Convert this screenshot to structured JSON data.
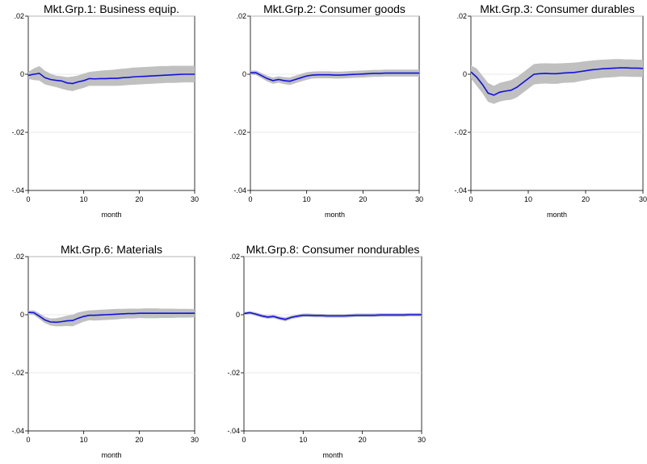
{
  "figure": {
    "colors": {
      "line": "#1010e0",
      "band": "#c0c0c0",
      "grid": "#e3e3e3",
      "frame": "#000000"
    }
  },
  "chart_data": [
    {
      "type": "line",
      "title": "Mkt.Grp.1: Business equip.",
      "xlabel": "month",
      "ylabel": "",
      "xlim": [
        0,
        30
      ],
      "ylim": [
        -0.04,
        0.02
      ],
      "xticks": [
        "0",
        "10",
        "20",
        "30"
      ],
      "yticks": [
        ".02",
        "0",
        "-.02",
        "-.04"
      ],
      "grid": true,
      "x": [
        0,
        1,
        2,
        3,
        4,
        5,
        6,
        7,
        8,
        9,
        10,
        11,
        12,
        13,
        14,
        15,
        16,
        17,
        18,
        19,
        20,
        21,
        22,
        23,
        24,
        25,
        26,
        27,
        28,
        29,
        30
      ],
      "series": [
        {
          "role": "estimate",
          "values": [
            -0.0004,
            0.0,
            0.0003,
            -0.0012,
            -0.0018,
            -0.0021,
            -0.0023,
            -0.003,
            -0.0032,
            -0.0026,
            -0.0022,
            -0.0015,
            -0.0016,
            -0.0015,
            -0.0015,
            -0.0014,
            -0.0014,
            -0.0012,
            -0.0011,
            -0.0009,
            -0.0008,
            -0.0007,
            -0.0006,
            -0.0005,
            -0.0004,
            -0.0003,
            -0.0002,
            -0.0001,
            0.0,
            0.0,
            0.0
          ]
        },
        {
          "role": "upper",
          "values": [
            0.0008,
            0.002,
            0.0028,
            0.0012,
            0.0002,
            -0.0005,
            -0.0007,
            -0.001,
            -0.0008,
            -0.0004,
            0.0002,
            0.0008,
            0.001,
            0.0012,
            0.0014,
            0.0015,
            0.0017,
            0.0019,
            0.0021,
            0.0023,
            0.0024,
            0.0025,
            0.0026,
            0.0027,
            0.0028,
            0.0028,
            0.0029,
            0.0029,
            0.0029,
            0.0029,
            0.0029
          ]
        },
        {
          "role": "lower",
          "values": [
            -0.0016,
            -0.002,
            -0.0022,
            -0.0035,
            -0.004,
            -0.0044,
            -0.005,
            -0.0055,
            -0.0058,
            -0.0052,
            -0.0047,
            -0.004,
            -0.004,
            -0.004,
            -0.004,
            -0.004,
            -0.004,
            -0.0039,
            -0.0037,
            -0.0036,
            -0.0035,
            -0.0034,
            -0.0033,
            -0.0032,
            -0.0031,
            -0.003,
            -0.003,
            -0.0029,
            -0.0028,
            -0.0028,
            -0.0028
          ]
        }
      ]
    },
    {
      "type": "line",
      "title": "Mkt.Grp.2: Consumer goods",
      "xlabel": "month",
      "ylabel": "",
      "xlim": [
        0,
        30
      ],
      "ylim": [
        -0.04,
        0.02
      ],
      "xticks": [
        "0",
        "10",
        "20",
        "30"
      ],
      "yticks": [
        ".02",
        "0",
        "-.02",
        "-.04"
      ],
      "grid": true,
      "x": [
        0,
        1,
        2,
        3,
        4,
        5,
        6,
        7,
        8,
        9,
        10,
        11,
        12,
        13,
        14,
        15,
        16,
        17,
        18,
        19,
        20,
        21,
        22,
        23,
        24,
        25,
        26,
        27,
        28,
        29,
        30
      ],
      "series": [
        {
          "role": "estimate",
          "values": [
            0.0005,
            0.0005,
            -0.0005,
            -0.0015,
            -0.0022,
            -0.0018,
            -0.0022,
            -0.0024,
            -0.0018,
            -0.0012,
            -0.0006,
            -0.0003,
            -0.0002,
            -0.0002,
            -0.0002,
            -0.0003,
            -0.0003,
            -0.0002,
            -0.0001,
            0.0,
            0.0001,
            0.0002,
            0.0003,
            0.0003,
            0.0004,
            0.0004,
            0.0004,
            0.0004,
            0.0004,
            0.0004,
            0.0004
          ]
        },
        {
          "role": "upper",
          "values": [
            0.0012,
            0.0013,
            0.0004,
            -0.0005,
            -0.0011,
            -0.0007,
            -0.001,
            -0.0011,
            -0.0005,
            0.0001,
            0.0007,
            0.0009,
            0.001,
            0.001,
            0.001,
            0.0009,
            0.0009,
            0.001,
            0.0011,
            0.0012,
            0.0013,
            0.0014,
            0.0015,
            0.0015,
            0.0016,
            0.0016,
            0.0016,
            0.0016,
            0.0016,
            0.0016,
            0.0016
          ]
        },
        {
          "role": "lower",
          "values": [
            -0.0002,
            -0.0003,
            -0.0014,
            -0.0025,
            -0.0033,
            -0.0029,
            -0.0034,
            -0.0037,
            -0.0031,
            -0.0025,
            -0.0019,
            -0.0015,
            -0.0014,
            -0.0014,
            -0.0014,
            -0.0015,
            -0.0015,
            -0.0014,
            -0.0013,
            -0.0012,
            -0.0011,
            -0.001,
            -0.0009,
            -0.0009,
            -0.0008,
            -0.0008,
            -0.0008,
            -0.0008,
            -0.0008,
            -0.0008,
            -0.0008
          ]
        }
      ]
    },
    {
      "type": "line",
      "title": "Mkt.Grp.3: Consumer durables",
      "xlabel": "month",
      "ylabel": "",
      "xlim": [
        0,
        30
      ],
      "ylim": [
        -0.04,
        0.02
      ],
      "xticks": [
        "0",
        "10",
        "20",
        "30"
      ],
      "yticks": [
        ".02",
        "0",
        "-.02",
        "-.04"
      ],
      "grid": true,
      "x": [
        0,
        1,
        2,
        3,
        4,
        5,
        6,
        7,
        8,
        9,
        10,
        11,
        12,
        13,
        14,
        15,
        16,
        17,
        18,
        19,
        20,
        21,
        22,
        23,
        24,
        25,
        26,
        27,
        28,
        29,
        30
      ],
      "series": [
        {
          "role": "estimate",
          "values": [
            0.0008,
            -0.001,
            -0.0035,
            -0.0065,
            -0.0072,
            -0.0062,
            -0.0058,
            -0.0055,
            -0.0045,
            -0.003,
            -0.0015,
            0.0,
            0.0002,
            0.0003,
            0.0002,
            0.0002,
            0.0004,
            0.0005,
            0.0006,
            0.0009,
            0.0012,
            0.0015,
            0.0017,
            0.0019,
            0.002,
            0.0021,
            0.0022,
            0.0022,
            0.0021,
            0.0021,
            0.002
          ]
        },
        {
          "role": "upper",
          "values": [
            0.003,
            0.002,
            -0.0005,
            -0.003,
            -0.004,
            -0.003,
            -0.0025,
            -0.002,
            -0.001,
            0.0005,
            0.002,
            0.0035,
            0.0037,
            0.0038,
            0.0037,
            0.0037,
            0.0038,
            0.0039,
            0.004,
            0.0042,
            0.0045,
            0.0047,
            0.0049,
            0.005,
            0.0051,
            0.0052,
            0.0052,
            0.0051,
            0.0051,
            0.005,
            0.005
          ]
        },
        {
          "role": "lower",
          "values": [
            -0.0015,
            -0.004,
            -0.0065,
            -0.0095,
            -0.0102,
            -0.0094,
            -0.009,
            -0.0088,
            -0.008,
            -0.0065,
            -0.005,
            -0.0035,
            -0.0033,
            -0.0032,
            -0.0033,
            -0.0033,
            -0.003,
            -0.0029,
            -0.0028,
            -0.0024,
            -0.0021,
            -0.0017,
            -0.0015,
            -0.0012,
            -0.0011,
            -0.001,
            -0.0008,
            -0.0008,
            -0.0009,
            -0.0009,
            -0.001
          ]
        }
      ]
    },
    {
      "type": "line",
      "title": "Mkt.Grp.6: Materials",
      "xlabel": "month",
      "ylabel": "",
      "xlim": [
        0,
        30
      ],
      "ylim": [
        -0.04,
        0.02
      ],
      "xticks": [
        "0",
        "10",
        "20",
        "30"
      ],
      "yticks": [
        ".02",
        "0",
        "-.02",
        "-.04"
      ],
      "grid": true,
      "x": [
        0,
        1,
        2,
        3,
        4,
        5,
        6,
        7,
        8,
        9,
        10,
        11,
        12,
        13,
        14,
        15,
        16,
        17,
        18,
        19,
        20,
        21,
        22,
        23,
        24,
        25,
        26,
        27,
        28,
        29,
        30
      ],
      "series": [
        {
          "role": "estimate",
          "values": [
            0.0008,
            0.0007,
            -0.0005,
            -0.0018,
            -0.0025,
            -0.0026,
            -0.0024,
            -0.0021,
            -0.002,
            -0.0012,
            -0.0006,
            -0.0002,
            -0.0002,
            -0.0001,
            0.0,
            0.0001,
            0.0002,
            0.0003,
            0.0004,
            0.0004,
            0.0005,
            0.0005,
            0.0005,
            0.0005,
            0.0005,
            0.0005,
            0.0005,
            0.0005,
            0.0005,
            0.0005,
            0.0005
          ]
        },
        {
          "role": "upper",
          "values": [
            0.0014,
            0.0015,
            0.0005,
            -0.0007,
            -0.0013,
            -0.0012,
            -0.0008,
            -0.0003,
            0.0,
            0.0008,
            0.0012,
            0.0015,
            0.0016,
            0.0017,
            0.0018,
            0.0019,
            0.002,
            0.002,
            0.0021,
            0.0021,
            0.0021,
            0.0022,
            0.0022,
            0.0022,
            0.0021,
            0.0021,
            0.0021,
            0.002,
            0.002,
            0.002,
            0.0019
          ]
        },
        {
          "role": "lower",
          "values": [
            0.0002,
            -0.0001,
            -0.0015,
            -0.0029,
            -0.0037,
            -0.004,
            -0.004,
            -0.0039,
            -0.004,
            -0.0032,
            -0.0024,
            -0.0019,
            -0.002,
            -0.0019,
            -0.0018,
            -0.0017,
            -0.0016,
            -0.0014,
            -0.0013,
            -0.0013,
            -0.0011,
            -0.0012,
            -0.0012,
            -0.0012,
            -0.0011,
            -0.0011,
            -0.0011,
            -0.001,
            -0.001,
            -0.001,
            -0.0009
          ]
        }
      ]
    },
    {
      "type": "line",
      "title": "Mkt.Grp.8: Consumer nondurables",
      "xlabel": "month",
      "ylabel": "",
      "xlim": [
        0,
        30
      ],
      "ylim": [
        -0.04,
        0.02
      ],
      "xticks": [
        "0",
        "10",
        "20",
        "30"
      ],
      "yticks": [
        ".02",
        "0",
        "-.02",
        "-.04"
      ],
      "grid": true,
      "x": [
        0,
        1,
        2,
        3,
        4,
        5,
        6,
        7,
        8,
        9,
        10,
        11,
        12,
        13,
        14,
        15,
        16,
        17,
        18,
        19,
        20,
        21,
        22,
        23,
        24,
        25,
        26,
        27,
        28,
        29,
        30
      ],
      "series": [
        {
          "role": "estimate",
          "values": [
            0.0004,
            0.0007,
            0.0002,
            -0.0004,
            -0.0008,
            -0.0006,
            -0.0012,
            -0.0016,
            -0.0009,
            -0.0005,
            -0.0002,
            -0.0002,
            -0.0003,
            -0.0003,
            -0.0004,
            -0.0004,
            -0.0004,
            -0.0004,
            -0.0003,
            -0.0002,
            -0.0002,
            -0.0002,
            -0.0002,
            -0.0001,
            -0.0001,
            -0.0001,
            -0.0001,
            -0.0001,
            0.0,
            0.0,
            0.0
          ]
        },
        {
          "role": "upper",
          "values": [
            0.0009,
            0.0012,
            0.0008,
            0.0002,
            -0.0002,
            0.0,
            -0.0006,
            -0.0009,
            -0.0003,
            0.0001,
            0.0004,
            0.0004,
            0.0003,
            0.0003,
            0.0002,
            0.0002,
            0.0002,
            0.0002,
            0.0003,
            0.0004,
            0.0004,
            0.0004,
            0.0004,
            0.0005,
            0.0005,
            0.0005,
            0.0005,
            0.0005,
            0.0006,
            0.0006,
            0.0006
          ]
        },
        {
          "role": "lower",
          "values": [
            -0.0001,
            0.0002,
            -0.0004,
            -0.001,
            -0.0014,
            -0.0012,
            -0.0018,
            -0.0023,
            -0.0015,
            -0.0011,
            -0.0008,
            -0.0008,
            -0.0009,
            -0.0009,
            -0.001,
            -0.001,
            -0.001,
            -0.001,
            -0.0009,
            -0.0008,
            -0.0008,
            -0.0008,
            -0.0008,
            -0.0007,
            -0.0007,
            -0.0007,
            -0.0007,
            -0.0007,
            -0.0006,
            -0.0006,
            -0.0006
          ]
        }
      ]
    }
  ]
}
